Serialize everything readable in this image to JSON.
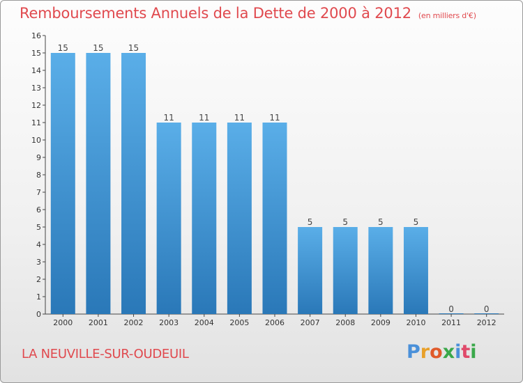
{
  "header": {
    "title": "Remboursements Annuels de la Dette de 2000 à 2012",
    "unit": "(en milliers d'€)"
  },
  "footer": {
    "commune": "LA NEUVILLE-SUR-OUDEUIL",
    "logo_text": "Proxiti",
    "logo_colors": [
      "#4a90d9",
      "#e8a02a",
      "#e05a2a",
      "#3aa84a",
      "#4a90d9",
      "#e04a6a",
      "#3aa84a"
    ]
  },
  "colors": {
    "bar_top": "#5aaee8",
    "bar_bottom": "#2a78b8",
    "title": "#e0494e"
  },
  "chart_data": {
    "type": "bar",
    "title": "Remboursements Annuels de la Dette de 2000 à 2012",
    "subtitle": "(en milliers d'€)",
    "categories": [
      "2000",
      "2001",
      "2002",
      "2003",
      "2004",
      "2005",
      "2006",
      "2007",
      "2008",
      "2009",
      "2010",
      "2011",
      "2012"
    ],
    "values": [
      15,
      15,
      15,
      11,
      11,
      11,
      11,
      5,
      5,
      5,
      5,
      0,
      0
    ],
    "data_labels": [
      "15",
      "15",
      "15",
      "11",
      "11",
      "11",
      "11",
      "5",
      "5",
      "5",
      "5",
      "0",
      "0"
    ],
    "ylim": [
      0,
      16
    ],
    "yticks": [
      "0",
      "1",
      "2",
      "3",
      "4",
      "5",
      "6",
      "7",
      "8",
      "9",
      "10",
      "11",
      "12",
      "13",
      "14",
      "15",
      "16"
    ],
    "xlabel": "",
    "ylabel": "",
    "grid": false,
    "legend": "none"
  }
}
